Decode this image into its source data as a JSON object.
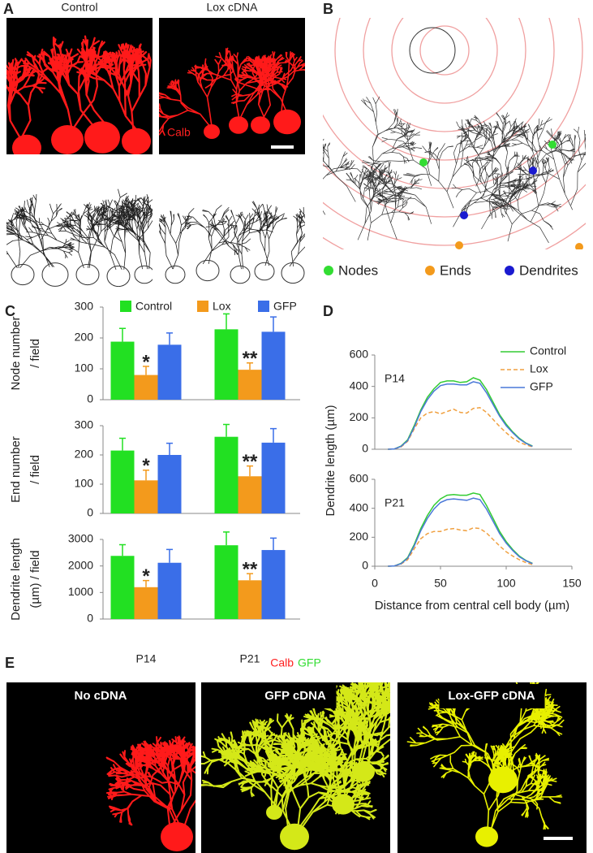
{
  "panel_labels": [
    "A",
    "B",
    "C",
    "D",
    "E"
  ],
  "panel_a": {
    "columns": [
      "Control",
      "Lox cDNA"
    ],
    "stain": "Calb"
  },
  "panel_b": {
    "legend": [
      {
        "label": "Nodes",
        "color": "#33dd33"
      },
      {
        "label": "Ends",
        "color": "#f39a1c"
      },
      {
        "label": "Dendrites",
        "color": "#1a1ad0"
      }
    ]
  },
  "panel_e": {
    "stains": [
      {
        "label": "Calb",
        "color": "#ff2020"
      },
      {
        "label": "GFP",
        "color": "#33dd33"
      }
    ],
    "images": [
      "No cDNA",
      "GFP cDNA",
      "Lox-GFP cDNA"
    ]
  },
  "chart_data": [
    {
      "type": "bar",
      "ylabel": [
        "Node number",
        "/ field"
      ],
      "ylim": [
        0,
        300
      ],
      "yticks": [
        0,
        100,
        200,
        300
      ],
      "series": [
        {
          "name": "Control",
          "color": "#22e022",
          "values": [
            188,
            228
          ],
          "errors": [
            43,
            50
          ]
        },
        {
          "name": "Lox",
          "color": "#f39a1c",
          "values": [
            80,
            97
          ],
          "errors": [
            28,
            22
          ]
        },
        {
          "name": "GFP",
          "color": "#3a6ee8",
          "values": [
            178,
            220
          ],
          "errors": [
            38,
            48
          ]
        }
      ],
      "annotations": [
        "*",
        "**"
      ]
    },
    {
      "type": "bar",
      "ylabel": [
        "End number",
        "/ field"
      ],
      "ylim": [
        0,
        300
      ],
      "yticks": [
        0,
        100,
        200,
        300
      ],
      "series": [
        {
          "color": "#22e022",
          "values": [
            215,
            262
          ],
          "errors": [
            42,
            42
          ]
        },
        {
          "color": "#f39a1c",
          "values": [
            113,
            127
          ],
          "errors": [
            35,
            35
          ]
        },
        {
          "color": "#3a6ee8",
          "values": [
            200,
            242
          ],
          "errors": [
            40,
            48
          ]
        }
      ],
      "annotations": [
        "*",
        "**"
      ]
    },
    {
      "type": "bar",
      "ylabel": [
        "Dendrite length",
        "(µm) / field"
      ],
      "ylim": [
        0,
        3000
      ],
      "yticks": [
        0,
        1000,
        2000,
        3000
      ],
      "categories": [
        "P14",
        "P21"
      ],
      "series": [
        {
          "color": "#22e022",
          "values": [
            2380,
            2780
          ],
          "errors": [
            420,
            500
          ]
        },
        {
          "color": "#f39a1c",
          "values": [
            1200,
            1460
          ],
          "errors": [
            250,
            250
          ]
        },
        {
          "color": "#3a6ee8",
          "values": [
            2120,
            2600
          ],
          "errors": [
            500,
            450
          ]
        }
      ],
      "annotations": [
        "*",
        "**"
      ]
    },
    {
      "type": "line",
      "subtitle": "P14",
      "ylabel": "Dendrite length (µm)",
      "xlim": [
        0,
        150
      ],
      "ylim": [
        0,
        600
      ],
      "yticks": [
        0,
        200,
        400,
        600
      ],
      "x": [
        10,
        15,
        20,
        25,
        30,
        35,
        40,
        45,
        50,
        55,
        60,
        65,
        70,
        75,
        80,
        85,
        90,
        95,
        100,
        105,
        110,
        115,
        120
      ],
      "series": [
        {
          "name": "Control",
          "color": "#33cc33",
          "style": "solid",
          "values": [
            0,
            2,
            20,
            60,
            150,
            250,
            330,
            385,
            425,
            435,
            435,
            425,
            430,
            455,
            440,
            380,
            300,
            220,
            160,
            110,
            70,
            40,
            20
          ]
        },
        {
          "name": "Lox",
          "color": "#f0a040",
          "style": "dashed",
          "values": [
            0,
            2,
            15,
            50,
            130,
            200,
            230,
            240,
            225,
            240,
            255,
            235,
            230,
            260,
            265,
            235,
            190,
            145,
            105,
            70,
            45,
            28,
            15
          ]
        },
        {
          "name": "GFP",
          "color": "#4a78d8",
          "style": "solid",
          "values": [
            0,
            2,
            18,
            55,
            140,
            240,
            315,
            370,
            405,
            415,
            415,
            410,
            410,
            430,
            420,
            360,
            285,
            210,
            150,
            105,
            65,
            38,
            18
          ]
        }
      ]
    },
    {
      "type": "line",
      "subtitle": "P21",
      "xlabel": "Distance from central cell body (µm)",
      "xlim": [
        0,
        150
      ],
      "xticks": [
        0,
        50,
        100,
        150
      ],
      "ylim": [
        0,
        600
      ],
      "yticks": [
        0,
        200,
        400,
        600
      ],
      "x": [
        10,
        15,
        20,
        25,
        30,
        35,
        40,
        45,
        50,
        55,
        60,
        65,
        70,
        75,
        80,
        85,
        90,
        95,
        100,
        105,
        110,
        115,
        120
      ],
      "series": [
        {
          "color": "#33cc33",
          "style": "solid",
          "values": [
            0,
            2,
            20,
            60,
            150,
            260,
            350,
            420,
            465,
            490,
            495,
            490,
            490,
            505,
            495,
            420,
            330,
            240,
            170,
            115,
            70,
            40,
            20
          ]
        },
        {
          "color": "#f0a040",
          "style": "dashed",
          "values": [
            0,
            2,
            15,
            45,
            120,
            190,
            225,
            240,
            240,
            255,
            260,
            250,
            245,
            265,
            260,
            230,
            185,
            140,
            100,
            70,
            45,
            25,
            12
          ]
        },
        {
          "color": "#4a78d8",
          "style": "solid",
          "values": [
            0,
            2,
            18,
            55,
            140,
            245,
            330,
            395,
            440,
            460,
            465,
            460,
            455,
            470,
            460,
            395,
            310,
            225,
            160,
            108,
            65,
            38,
            18
          ]
        }
      ]
    }
  ]
}
